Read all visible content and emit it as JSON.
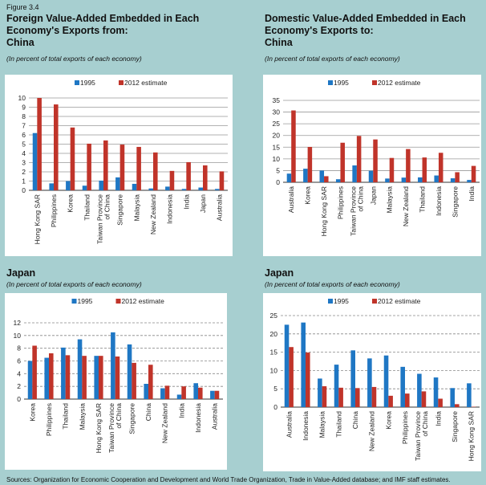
{
  "figure_label": "Figure 3.4",
  "sources": "Sources: Organization for Economic Cooperation and Development and World Trade Organization, Trade in Value-Added database; and IMF staff estimates.",
  "colors": {
    "s1995": "#1f77c4",
    "s2012": "#c0342a",
    "background": "#a7cfd0"
  },
  "chart_data": [
    {
      "type": "bar",
      "title": "Foreign Value-Added Embedded in Each Economy's Exports from:",
      "subtitle_bold": "China",
      "note": "(In percent of total exports of each economy)",
      "categories": [
        "Hong Kong SAR",
        "Philippines",
        "Korea",
        "Thailand",
        "Taiwan Province of China",
        "Singapore",
        "Malaysia",
        "New Zealand",
        "Indonesia",
        "India",
        "Japan",
        "Australia"
      ],
      "series": [
        {
          "name": "1995",
          "values": [
            6.2,
            0.75,
            1.0,
            0.5,
            1.05,
            1.4,
            0.7,
            0.2,
            0.4,
            0.15,
            0.3,
            0.15
          ]
        },
        {
          "name": "2012 estimate",
          "values": [
            10,
            9.3,
            6.8,
            5.05,
            5.4,
            4.95,
            4.7,
            4.1,
            2.1,
            3.05,
            2.7,
            2.05
          ]
        }
      ],
      "ylim": [
        0,
        10
      ],
      "yticks": [
        "0",
        "1",
        "2",
        "3",
        "4",
        "5",
        "6",
        "7",
        "8",
        "9",
        "10"
      ],
      "ystep": 1,
      "grid": "solid",
      "legend": "top-center"
    },
    {
      "type": "bar",
      "title": "Domestic Value-Added Embedded in Each Economy's Exports to:",
      "subtitle_bold": "China",
      "note": "(In percent of total exports of each economy)",
      "categories": [
        "Australia",
        "Korea",
        "Hong Kong SAR",
        "Philippines",
        "Taiwan Province of China",
        "Japan",
        "Malaysia",
        "New Zealand",
        "Thailand",
        "Indonesia",
        "Singapore",
        "India"
      ],
      "series": [
        {
          "name": "1995",
          "values": [
            3.7,
            5.8,
            5.0,
            1.3,
            7.2,
            4.9,
            1.6,
            2.0,
            2.1,
            2.9,
            1.7,
            1.0
          ]
        },
        {
          "name": "2012 estimate",
          "values": [
            30.7,
            15.1,
            2.6,
            16.9,
            19.8,
            18.3,
            10.4,
            14.2,
            10.6,
            12.6,
            4.3,
            7.0
          ]
        }
      ],
      "ylim": [
        0,
        35
      ],
      "yticks": [
        "0",
        "5",
        "10",
        "15",
        "20",
        "25",
        "30",
        "35"
      ],
      "ystep": 5,
      "grid": "solid",
      "legend": "top-center"
    },
    {
      "type": "bar",
      "title": "Japan",
      "note": "(In percent of total exports of each economy)",
      "categories": [
        "Korea",
        "Philippines",
        "Thailand",
        "Malaysia",
        "Hong Kong SAR",
        "Taiwan Province of China",
        "Singapore",
        "China",
        "New Zealand",
        "India",
        "Indonesia",
        "Australia"
      ],
      "series": [
        {
          "name": "1995",
          "values": [
            6.0,
            6.5,
            8.1,
            9.4,
            6.8,
            10.5,
            8.6,
            2.4,
            1.7,
            0.7,
            2.5,
            1.3
          ]
        },
        {
          "name": "2012 estimate",
          "values": [
            8.4,
            7.2,
            6.9,
            6.8,
            6.8,
            6.7,
            5.7,
            5.4,
            2.1,
            2.0,
            1.8,
            1.3
          ]
        }
      ],
      "ylim": [
        0,
        12
      ],
      "yticks": [
        "0",
        "2",
        "4",
        "6",
        "8",
        "10",
        "12"
      ],
      "ystep": 2,
      "grid": "dashed",
      "legend": "top-center"
    },
    {
      "type": "bar",
      "title": "Japan",
      "note": "(In percent of total exports of each economy)",
      "categories": [
        "Australia",
        "Indonesia",
        "Malaysia",
        "Thailand",
        "China",
        "New Zealand",
        "Korea",
        "Philippines",
        "Taiwan Province of China",
        "India",
        "Singapore",
        "Hong Kong SAR"
      ],
      "series": [
        {
          "name": "1995",
          "values": [
            22.5,
            23.1,
            7.8,
            11.6,
            15.5,
            13.3,
            14.1,
            11.0,
            9.1,
            8.1,
            5.2,
            6.5
          ]
        },
        {
          "name": "2012 estimate",
          "values": [
            16.4,
            14.9,
            5.7,
            5.3,
            5.2,
            5.5,
            3.1,
            3.7,
            4.3,
            2.3,
            0.8,
            0.1
          ]
        }
      ],
      "ylim": [
        0,
        25
      ],
      "yticks": [
        "0",
        "5",
        "10",
        "15",
        "20",
        "25"
      ],
      "ystep": 5,
      "grid": "dashed",
      "legend": "top-center"
    }
  ]
}
